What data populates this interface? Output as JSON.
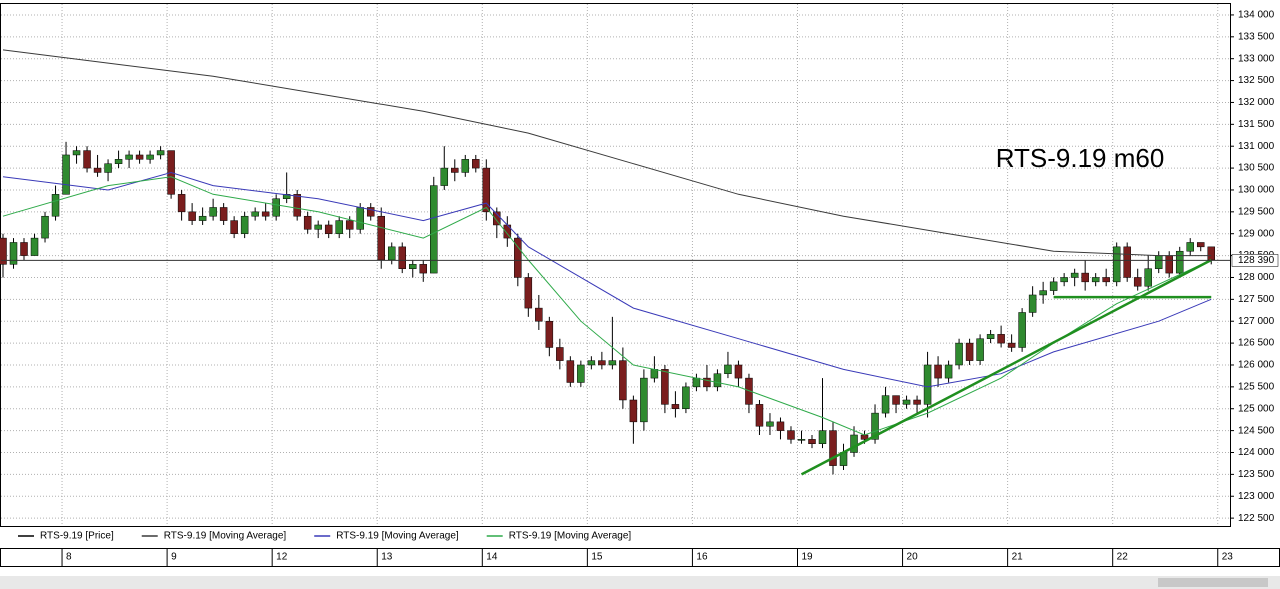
{
  "chart_data": {
    "type": "candlestick",
    "title": "RTS-9.19 m60",
    "ylim": [
      122320,
      134250
    ],
    "yticks": [
      {
        "value": 122500,
        "label": "122 500"
      },
      {
        "value": 123000,
        "label": "123 000"
      },
      {
        "value": 123500,
        "label": "123 500"
      },
      {
        "value": 124000,
        "label": "124 000"
      },
      {
        "value": 124500,
        "label": "124 500"
      },
      {
        "value": 125000,
        "label": "125 000"
      },
      {
        "value": 125500,
        "label": "125 500"
      },
      {
        "value": 126000,
        "label": "126 000"
      },
      {
        "value": 126500,
        "label": "126 500"
      },
      {
        "value": 127000,
        "label": "127 000"
      },
      {
        "value": 127500,
        "label": "127 500"
      },
      {
        "value": 128000,
        "label": "128 000"
      },
      {
        "value": 128500,
        "label": "128 500"
      },
      {
        "value": 129000,
        "label": "129 000"
      },
      {
        "value": 129500,
        "label": "129 500"
      },
      {
        "value": 130000,
        "label": "130 000"
      },
      {
        "value": 130500,
        "label": "130 500"
      },
      {
        "value": 131000,
        "label": "131 000"
      },
      {
        "value": 131500,
        "label": "131 500"
      },
      {
        "value": 132000,
        "label": "132 000"
      },
      {
        "value": 132500,
        "label": "132 500"
      },
      {
        "value": 133000,
        "label": "133 000"
      },
      {
        "value": 133500,
        "label": "133 500"
      },
      {
        "value": 134000,
        "label": "134 000"
      }
    ],
    "xlim": [
      0,
      116.5
    ],
    "xticks": [
      {
        "value": 6,
        "label": "8"
      },
      {
        "value": 16,
        "label": "9"
      },
      {
        "value": 26,
        "label": "12"
      },
      {
        "value": 36,
        "label": "13"
      },
      {
        "value": 46,
        "label": "14"
      },
      {
        "value": 56,
        "label": "15"
      },
      {
        "value": 66,
        "label": "16"
      },
      {
        "value": 76,
        "label": "19"
      },
      {
        "value": 86,
        "label": "20"
      },
      {
        "value": 96,
        "label": "21"
      },
      {
        "value": 106,
        "label": "22"
      },
      {
        "value": 116,
        "label": "23"
      }
    ],
    "grid": true,
    "last_price": {
      "value": 128390,
      "label": "128 390"
    },
    "up_color": "#2f8a2f",
    "down_color": "#7a1e1e",
    "series": [
      {
        "name": "RTS-9.19 [Price]",
        "color": "#000000",
        "ohlc": [
          [
            128900,
            129000,
            128000,
            128300
          ],
          [
            128300,
            128900,
            128200,
            128800
          ],
          [
            128800,
            128900,
            128400,
            128500
          ],
          [
            128500,
            129000,
            128500,
            128900
          ],
          [
            128900,
            129500,
            128800,
            129400
          ],
          [
            129400,
            130100,
            129300,
            129900
          ],
          [
            129900,
            131100,
            129900,
            130800
          ],
          [
            130800,
            131000,
            130600,
            130900
          ],
          [
            130900,
            131000,
            130400,
            130500
          ],
          [
            130500,
            130800,
            130300,
            130400
          ],
          [
            130400,
            130700,
            130200,
            130600
          ],
          [
            130600,
            130900,
            130500,
            130700
          ],
          [
            130700,
            130900,
            130500,
            130800
          ],
          [
            130800,
            130900,
            130600,
            130700
          ],
          [
            130700,
            130900,
            130600,
            130800
          ],
          [
            130800,
            131000,
            130700,
            130900
          ],
          [
            130900,
            130900,
            129800,
            129900
          ],
          [
            129900,
            130000,
            129300,
            129500
          ],
          [
            129500,
            129700,
            129200,
            129300
          ],
          [
            129300,
            129600,
            129200,
            129400
          ],
          [
            129400,
            129800,
            129300,
            129600
          ],
          [
            129600,
            129700,
            129200,
            129300
          ],
          [
            129300,
            129400,
            128900,
            129000
          ],
          [
            129000,
            129500,
            128900,
            129400
          ],
          [
            129400,
            129600,
            129300,
            129500
          ],
          [
            129500,
            129700,
            129300,
            129400
          ],
          [
            129400,
            129900,
            129300,
            129800
          ],
          [
            129800,
            130400,
            129700,
            129900
          ],
          [
            129900,
            130000,
            129300,
            129400
          ],
          [
            129400,
            129500,
            129000,
            129100
          ],
          [
            129100,
            129300,
            128900,
            129200
          ],
          [
            129200,
            129300,
            128900,
            129000
          ],
          [
            129000,
            129400,
            128900,
            129300
          ],
          [
            129300,
            129400,
            128900,
            129100
          ],
          [
            129100,
            129700,
            129000,
            129600
          ],
          [
            129600,
            129700,
            129300,
            129400
          ],
          [
            129400,
            129600,
            128200,
            128400
          ],
          [
            128400,
            128800,
            128300,
            128700
          ],
          [
            128700,
            128800,
            128100,
            128200
          ],
          [
            128200,
            128400,
            128000,
            128300
          ],
          [
            128300,
            128400,
            127900,
            128100
          ],
          [
            128100,
            130300,
            128100,
            130100
          ],
          [
            130100,
            131000,
            130000,
            130500
          ],
          [
            130500,
            130700,
            130200,
            130400
          ],
          [
            130400,
            130800,
            130300,
            130700
          ],
          [
            130700,
            130800,
            130400,
            130500
          ],
          [
            130500,
            130700,
            129300,
            129500
          ],
          [
            129500,
            129600,
            128900,
            129200
          ],
          [
            129200,
            129400,
            128700,
            128900
          ],
          [
            128900,
            129000,
            127800,
            128000
          ],
          [
            128000,
            128100,
            127100,
            127300
          ],
          [
            127300,
            127600,
            126800,
            127000
          ],
          [
            127000,
            127100,
            126200,
            126400
          ],
          [
            126400,
            126600,
            125900,
            126100
          ],
          [
            126100,
            126200,
            125500,
            125600
          ],
          [
            125600,
            126100,
            125500,
            126000
          ],
          [
            126000,
            126200,
            125900,
            126100
          ],
          [
            126100,
            126300,
            125900,
            126000
          ],
          [
            126000,
            127100,
            125900,
            126100
          ],
          [
            126100,
            126400,
            125000,
            125200
          ],
          [
            125200,
            125300,
            124200,
            124700
          ],
          [
            124700,
            125900,
            124500,
            125700
          ],
          [
            125700,
            126200,
            125600,
            125900
          ],
          [
            125900,
            126000,
            124900,
            125100
          ],
          [
            125100,
            125400,
            124800,
            125000
          ],
          [
            125000,
            125600,
            124900,
            125500
          ],
          [
            125500,
            125800,
            125400,
            125700
          ],
          [
            125700,
            126000,
            125400,
            125500
          ],
          [
            125500,
            125900,
            125400,
            125800
          ],
          [
            125800,
            126300,
            125700,
            126000
          ],
          [
            126000,
            126100,
            125500,
            125700
          ],
          [
            125700,
            125800,
            124900,
            125100
          ],
          [
            125100,
            125200,
            124400,
            124600
          ],
          [
            124600,
            124900,
            124400,
            124700
          ],
          [
            124700,
            124800,
            124300,
            124500
          ],
          [
            124500,
            124600,
            124200,
            124300
          ],
          [
            124300,
            124500,
            124200,
            124300
          ],
          [
            124300,
            124400,
            124100,
            124200
          ],
          [
            124200,
            125700,
            124100,
            124500
          ],
          [
            124500,
            124700,
            123500,
            123700
          ],
          [
            123700,
            124200,
            123600,
            124000
          ],
          [
            124000,
            124600,
            123900,
            124400
          ],
          [
            124400,
            124500,
            124200,
            124300
          ],
          [
            124300,
            125100,
            124200,
            124900
          ],
          [
            124900,
            125500,
            124800,
            125300
          ],
          [
            125300,
            125300,
            124900,
            125100
          ],
          [
            125100,
            125300,
            125000,
            125200
          ],
          [
            125200,
            125300,
            124900,
            125100
          ],
          [
            125100,
            126300,
            124800,
            126000
          ],
          [
            126000,
            126200,
            125500,
            125700
          ],
          [
            125700,
            126100,
            125600,
            126000
          ],
          [
            126000,
            126600,
            125900,
            126500
          ],
          [
            126500,
            126600,
            126000,
            126100
          ],
          [
            126100,
            126700,
            126000,
            126600
          ],
          [
            126600,
            126800,
            126500,
            126700
          ],
          [
            126700,
            126900,
            126400,
            126500
          ],
          [
            126500,
            126700,
            126300,
            126400
          ],
          [
            126400,
            127300,
            126300,
            127200
          ],
          [
            127200,
            127800,
            127100,
            127600
          ],
          [
            127600,
            127900,
            127400,
            127700
          ],
          [
            127700,
            128000,
            127600,
            127900
          ],
          [
            127900,
            128100,
            127800,
            128000
          ],
          [
            128000,
            128200,
            127800,
            128100
          ],
          [
            128100,
            128400,
            127700,
            127900
          ],
          [
            127900,
            128100,
            127800,
            128000
          ],
          [
            128000,
            128200,
            127800,
            127900
          ],
          [
            127900,
            128800,
            127800,
            128700
          ],
          [
            128700,
            128800,
            127900,
            128000
          ],
          [
            128000,
            128200,
            127700,
            127800
          ],
          [
            127800,
            128500,
            127700,
            128200
          ],
          [
            128200,
            128600,
            128100,
            128500
          ],
          [
            128500,
            128600,
            128000,
            128100
          ],
          [
            128100,
            128700,
            128000,
            128600
          ],
          [
            128600,
            128900,
            128500,
            128800
          ],
          [
            128800,
            128800,
            128600,
            128700
          ],
          [
            128700,
            128700,
            128300,
            128400
          ]
        ]
      },
      {
        "name": "RTS-9.19 [Moving Average]",
        "color": "#3a3a3a",
        "x": [
          0,
          10,
          20,
          30,
          40,
          50,
          60,
          70,
          80,
          90,
          100,
          110,
          115
        ],
        "values": [
          133200,
          132900,
          132600,
          132200,
          131800,
          131300,
          130600,
          129900,
          129400,
          129000,
          128600,
          128500,
          128500
        ]
      },
      {
        "name": "RTS-9.19 [Moving Average]",
        "color": "#3a3ab8",
        "x": [
          0,
          10,
          16,
          20,
          30,
          40,
          46,
          50,
          60,
          70,
          80,
          88,
          95,
          100,
          110,
          115
        ],
        "values": [
          130300,
          130000,
          130400,
          130100,
          129800,
          129300,
          129700,
          128700,
          127300,
          126600,
          125900,
          125500,
          125800,
          126300,
          127000,
          127500
        ]
      },
      {
        "name": "RTS-9.19 [Moving Average]",
        "color": "#2faa4a",
        "x": [
          0,
          10,
          16,
          20,
          30,
          40,
          46,
          50,
          55,
          60,
          70,
          78,
          82,
          88,
          95,
          100,
          106,
          115
        ],
        "values": [
          129400,
          130100,
          130300,
          129900,
          129500,
          128900,
          129600,
          128400,
          127000,
          126000,
          125500,
          124800,
          124400,
          124900,
          125700,
          126500,
          127400,
          128400
        ]
      }
    ],
    "trendlines": [
      {
        "color": "#1f8f1f",
        "x": [
          76,
          115
        ],
        "values": [
          123500,
          128400
        ]
      },
      {
        "color": "#1f8f1f",
        "x": [
          100,
          115
        ],
        "values": [
          127550,
          127550
        ]
      }
    ]
  }
}
